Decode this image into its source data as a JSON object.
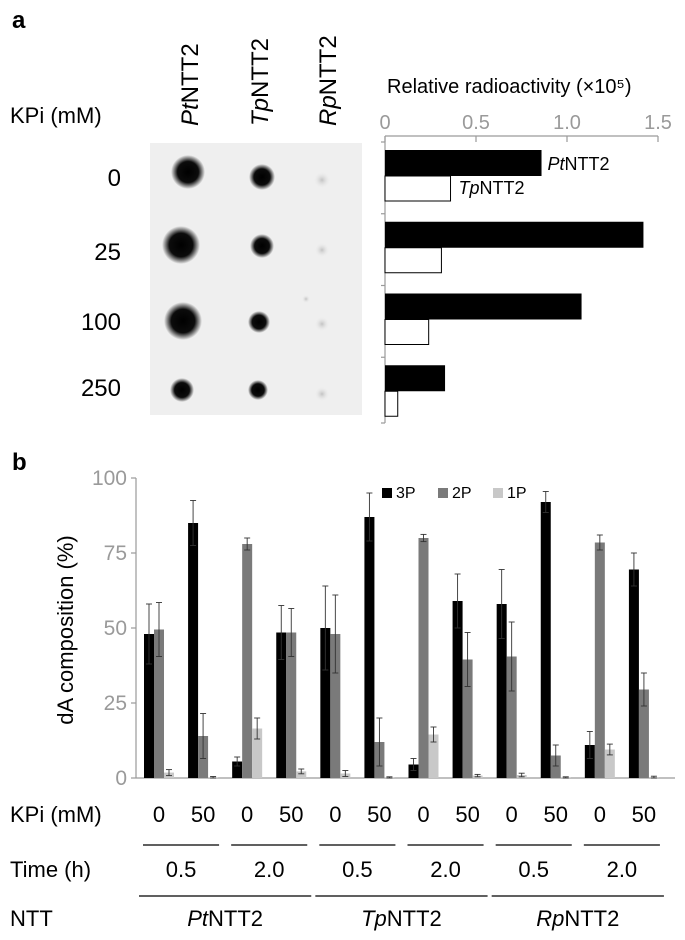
{
  "panel_a": {
    "label": "a",
    "row_header": "KPi (mM)",
    "columns": [
      {
        "italic": "Pt",
        "rest": "NTT2"
      },
      {
        "italic": "Tp",
        "rest": "NTT2"
      },
      {
        "italic": "Rp",
        "rest": "NTT2"
      }
    ],
    "rows": [
      "0",
      "25",
      "100",
      "250"
    ]
  },
  "panel_b": {
    "label": "b",
    "kpi_label": "KPi (mM)",
    "time_label": "Time (h)",
    "ntt_label": "NTT"
  },
  "colors": {
    "black": "#000000",
    "dark_gray": "#7a7a7a",
    "light_gray": "#c8c8c8",
    "axis_gray": "#9a9a9a"
  },
  "chart_data": [
    {
      "type": "bar",
      "orientation": "horizontal",
      "title": "Relative radioactivity (×10⁵)",
      "xlim": [
        0,
        1.5
      ],
      "xticks": [
        0,
        0.5,
        1.0,
        1.5
      ],
      "xtick_labels": [
        "0",
        "0.5",
        "1.0",
        "1.5"
      ],
      "categories": [
        "0",
        "25",
        "100",
        "250"
      ],
      "series": [
        {
          "name": "PtNTT2",
          "name_italic": "Pt",
          "name_rest": "NTT2",
          "color": "#000000",
          "values": [
            0.86,
            1.42,
            1.08,
            0.33
          ]
        },
        {
          "name": "TpNTT2",
          "name_italic": "Tp",
          "name_rest": "NTT2",
          "color": "#ffffff",
          "values": [
            0.36,
            0.31,
            0.24,
            0.07
          ]
        }
      ]
    },
    {
      "type": "bar",
      "ylabel": "dA composition (%)",
      "ylim": [
        0,
        100
      ],
      "yticks": [
        0,
        25,
        50,
        75,
        100
      ],
      "categories": [
        "0",
        "50",
        "0",
        "50",
        "0",
        "50",
        "0",
        "50",
        "0",
        "50",
        "0",
        "50"
      ],
      "time_groups": [
        "0.5",
        "2.0",
        "0.5",
        "2.0",
        "0.5",
        "2.0"
      ],
      "ntt_groups": [
        {
          "italic": "Pt",
          "rest": "NTT2"
        },
        {
          "italic": "Tp",
          "rest": "NTT2"
        },
        {
          "italic": "Rp",
          "rest": "NTT2"
        }
      ],
      "legend_position": "top-right",
      "series": [
        {
          "name": "3P",
          "color": "#000000",
          "values": [
            48,
            85,
            5.5,
            48.5,
            50,
            87,
            4.5,
            59,
            58,
            92,
            11,
            69.5
          ],
          "errors": [
            10,
            7.5,
            1.5,
            9,
            14,
            8,
            2,
            9,
            11.5,
            3.5,
            4.5,
            5.5
          ]
        },
        {
          "name": "2P",
          "color": "#7a7a7a",
          "values": [
            49.5,
            14,
            78,
            48.5,
            48,
            12,
            80,
            39.5,
            40.5,
            7.5,
            78.5,
            29.5
          ],
          "errors": [
            9,
            7.5,
            2,
            8,
            13,
            8,
            1.2,
            9,
            11.5,
            3.5,
            2.5,
            5.5
          ]
        },
        {
          "name": "1P",
          "color": "#c8c8c8",
          "values": [
            1.8,
            0.2,
            16.5,
            2.2,
            1.5,
            0.2,
            14.5,
            0.8,
            1,
            0.2,
            9.5,
            0.3
          ],
          "errors": [
            1,
            0.3,
            3.5,
            0.8,
            1,
            0.2,
            2.5,
            0.4,
            0.6,
            0.2,
            1.8,
            0.3
          ]
        }
      ]
    }
  ]
}
